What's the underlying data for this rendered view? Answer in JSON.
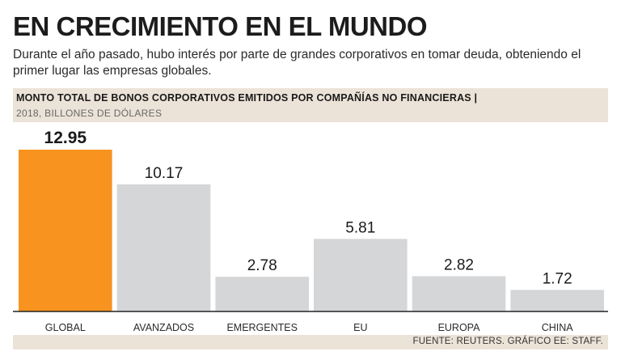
{
  "headline": "EN CRECIMIENTO EN EL MUNDO",
  "intro": "Durante el año pasado, hubo interés por parte de grandes corporativos en tomar deuda, obteniendo el primer lugar las empresas globales.",
  "source": "FUENTE: REUTERS. GRÁFICO EE: STAFF.",
  "colors": {
    "highlight": "#f7931e",
    "bar": "#d5d6d8",
    "band": "#ece3d8",
    "axis": "#222222"
  },
  "chart_data": {
    "type": "bar",
    "title": "MONTO TOTAL DE BONOS CORPORATIVOS EMITIDOS POR COMPAÑÍAS NO FINANCIERAS |",
    "subtitle": "2018, BILLONES DE DÓLARES",
    "categories": [
      "GLOBAL",
      "AVANZADOS",
      "EMERGENTES",
      "EU",
      "EUROPA",
      "CHINA"
    ],
    "values": [
      12.95,
      10.17,
      2.78,
      5.81,
      2.82,
      1.72
    ],
    "value_labels": [
      "12.95",
      "10.17",
      "2.78",
      "5.81",
      "2.82",
      "1.72"
    ],
    "highlight_index": 0,
    "xlabel": "",
    "ylabel": "",
    "ylim": [
      0,
      12.95
    ]
  }
}
